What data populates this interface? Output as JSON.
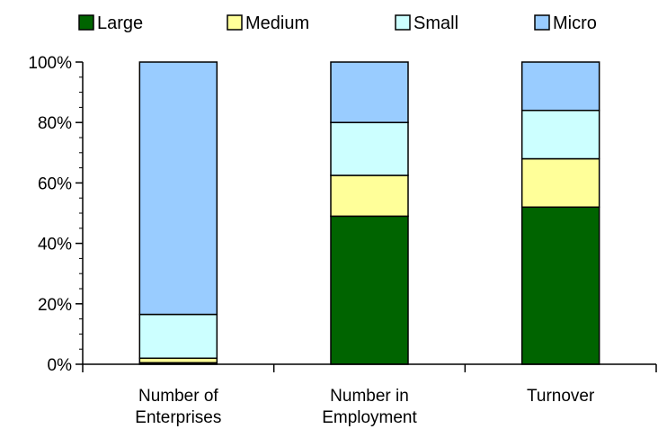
{
  "chart_data": {
    "type": "bar",
    "stacked": true,
    "orientation": "vertical",
    "normalized_percent": true,
    "categories": [
      "Number of Enterprises",
      "Number in Employment",
      "Turnover"
    ],
    "category_lines": [
      [
        "Number of",
        "Enterprises"
      ],
      [
        "Number in",
        "Employment"
      ],
      [
        "Turnover"
      ]
    ],
    "series": [
      {
        "name": "Large",
        "values": [
          0.5,
          49,
          52
        ],
        "color": "#006400"
      },
      {
        "name": "Medium",
        "values": [
          1.5,
          13.5,
          16
        ],
        "color": "#FFFF99"
      },
      {
        "name": "Small",
        "values": [
          14.5,
          17.5,
          16
        ],
        "color": "#CCFFFF"
      },
      {
        "name": "Micro",
        "values": [
          83.5,
          20,
          16
        ],
        "color": "#99CCFF"
      }
    ],
    "ylim": [
      0,
      100
    ],
    "yticks": [
      0,
      20,
      40,
      60,
      80,
      100
    ],
    "ytick_labels": [
      "0%",
      "20%",
      "40%",
      "60%",
      "80%",
      "100%"
    ],
    "legend_position": "top",
    "grid": false,
    "bar_edge_color": "#000000",
    "title": "",
    "xlabel": "",
    "ylabel": ""
  }
}
